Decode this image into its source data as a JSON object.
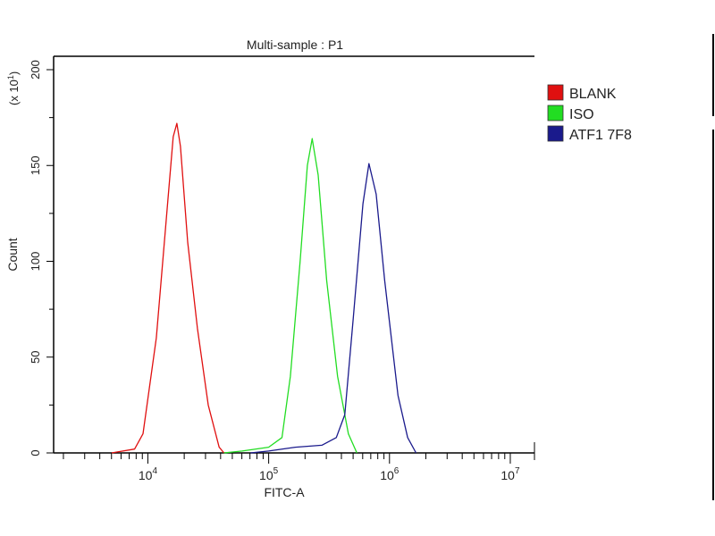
{
  "chart_data": {
    "type": "line",
    "title": "Multi-sample : P1",
    "xlabel": "FITC-A",
    "ylabel": "Count",
    "y_multiplier": "(x 10",
    "y_multiplier_exp": "1",
    "x_scale": "log",
    "xlim_log10": [
      3.22,
      7.2
    ],
    "ylim": [
      0,
      200
    ],
    "x_ticks": [
      {
        "base": "10",
        "exp": "4",
        "v": 4
      },
      {
        "base": "10",
        "exp": "5",
        "v": 5
      },
      {
        "base": "10",
        "exp": "6",
        "v": 6
      },
      {
        "base": "10",
        "exp": "7",
        "v": 7
      }
    ],
    "y_ticks": [
      {
        "label": "0",
        "v": 0
      },
      {
        "label": "50",
        "v": 50
      },
      {
        "label": "100",
        "v": 100
      },
      {
        "label": "150",
        "v": 150
      },
      {
        "label": "200",
        "v": 200
      }
    ],
    "legend_position": "right",
    "series": [
      {
        "name": "BLANK",
        "color": "#e01010",
        "x_log10": [
          3.7,
          3.89,
          3.96,
          4.07,
          4.15,
          4.21,
          4.24,
          4.27,
          4.33,
          4.41,
          4.5,
          4.59,
          4.63
        ],
        "y": [
          0,
          2,
          10,
          60,
          120,
          165,
          172,
          160,
          110,
          65,
          25,
          3,
          0
        ]
      },
      {
        "name": "ISO",
        "color": "#22dd22",
        "x_log10": [
          4.63,
          4.78,
          5.0,
          5.11,
          5.18,
          5.26,
          5.32,
          5.36,
          5.41,
          5.48,
          5.57,
          5.66,
          5.73
        ],
        "y": [
          0,
          1,
          3,
          8,
          40,
          100,
          150,
          164,
          145,
          90,
          40,
          10,
          0
        ]
      },
      {
        "name": "ATF1 7F8",
        "color": "#1a1a8c",
        "x_log10": [
          4.85,
          5.0,
          5.22,
          5.44,
          5.56,
          5.63,
          5.7,
          5.78,
          5.83,
          5.89,
          5.96,
          6.07,
          6.15,
          6.22
        ],
        "y": [
          0,
          1,
          3,
          4,
          8,
          20,
          70,
          130,
          151,
          135,
          90,
          30,
          8,
          0
        ]
      }
    ]
  }
}
